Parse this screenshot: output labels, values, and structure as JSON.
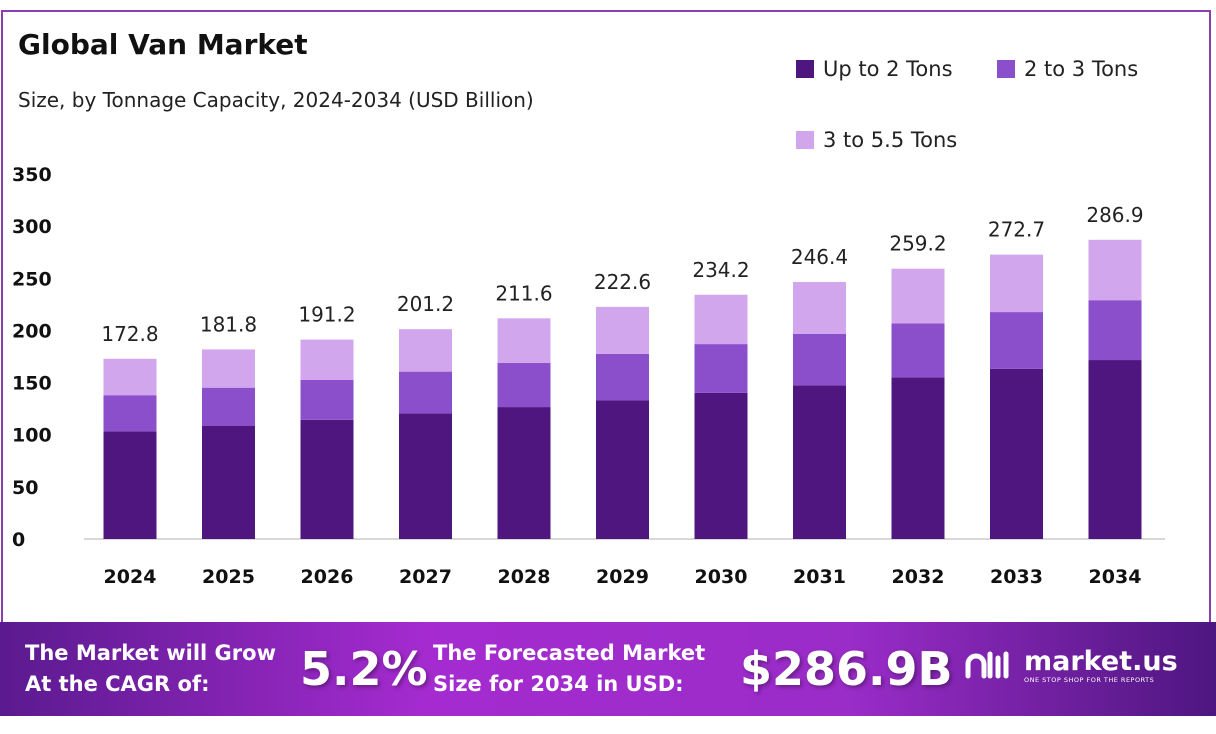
{
  "header": {
    "title": "Global Van Market",
    "subtitle": "Size, by Tonnage Capacity, 2024-2034 (USD Billion)"
  },
  "chart_data": {
    "type": "bar",
    "stacked": true,
    "title": "Global Van Market",
    "subtitle": "Size, by Tonnage Capacity, 2024-2034 (USD Billion)",
    "categories": [
      "2024",
      "2025",
      "2026",
      "2027",
      "2028",
      "2029",
      "2030",
      "2031",
      "2032",
      "2033",
      "2034"
    ],
    "series": [
      {
        "name": "Up to 2 Tons",
        "color": "#4f1680",
        "values": [
          103.3,
          108.7,
          114.3,
          120.3,
          126.5,
          133.1,
          140.1,
          147.3,
          155.0,
          163.1,
          171.6
        ]
      },
      {
        "name": "2 to 3 Tons",
        "color": "#8b4fcc",
        "values": [
          34.6,
          36.4,
          38.2,
          40.2,
          42.3,
          44.5,
          46.8,
          49.3,
          51.8,
          54.5,
          57.4
        ]
      },
      {
        "name": "3 to 5.5 Tons",
        "color": "#d2a6ec",
        "values": [
          34.9,
          36.7,
          38.7,
          40.7,
          42.8,
          45.0,
          47.3,
          49.8,
          52.4,
          55.1,
          57.9
        ]
      }
    ],
    "totals": [
      "172.8",
      "181.8",
      "191.2",
      "201.2",
      "211.6",
      "222.6",
      "234.2",
      "246.4",
      "259.2",
      "272.7",
      "286.9"
    ],
    "yticks": [
      "0",
      "50",
      "100",
      "150",
      "200",
      "250",
      "300",
      "350"
    ],
    "ylim": [
      0,
      350
    ],
    "grid": false,
    "legend": "top-right"
  },
  "banner": {
    "cagr_label_1": "The Market will Grow",
    "cagr_label_2": "At the CAGR of:",
    "cagr_value": "5.2%",
    "forecast_label_1": "The Forecasted Market",
    "forecast_label_2": "Size for 2034 in USD:",
    "forecast_value": "$286.9B",
    "logo_text": "market.us",
    "logo_tagline": "ONE STOP SHOP FOR THE REPORTS"
  }
}
